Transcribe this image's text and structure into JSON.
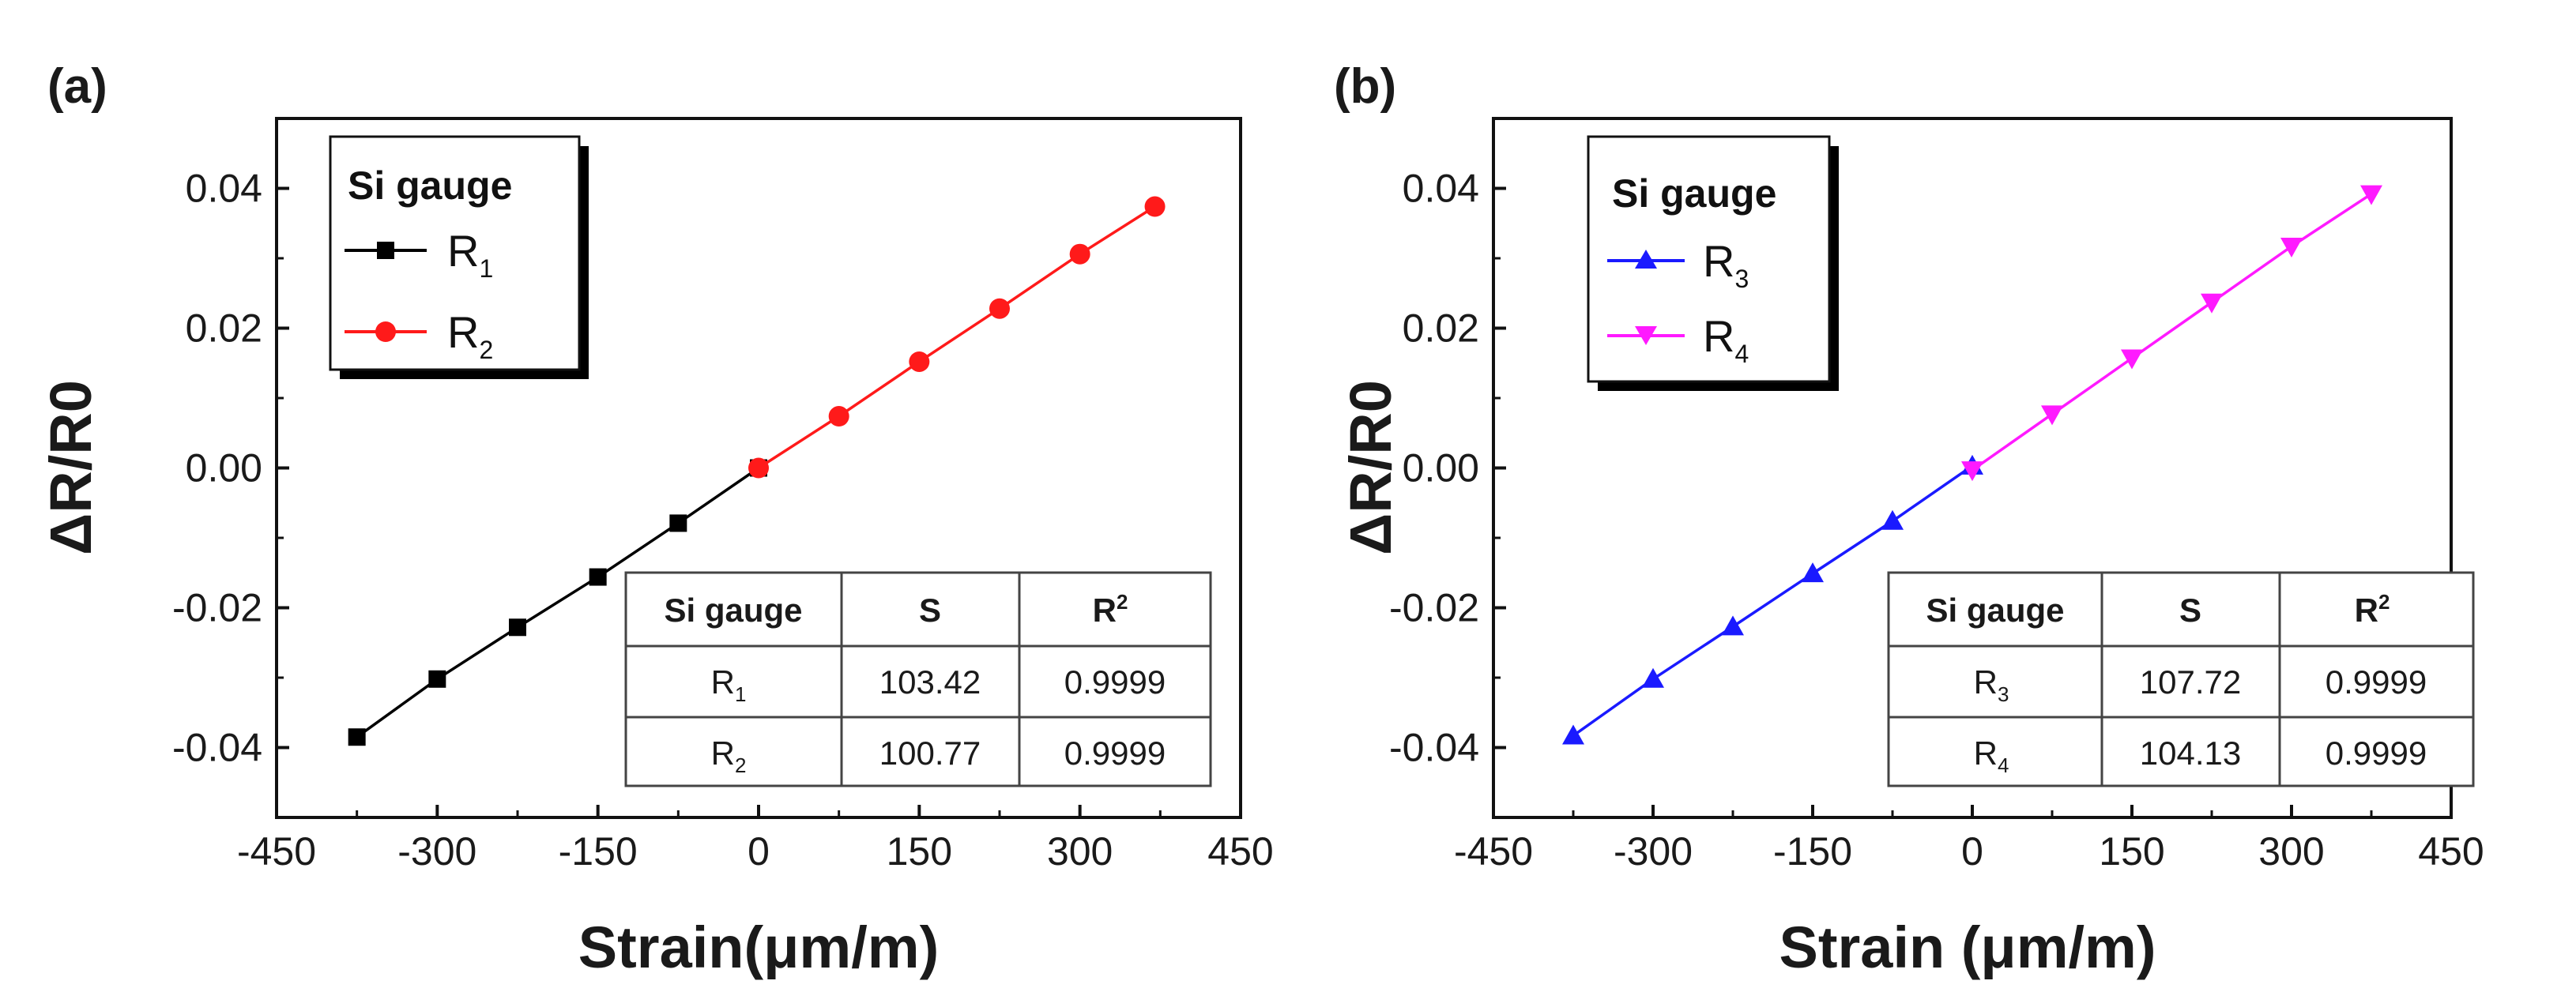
{
  "chart_data": [
    {
      "panel_label": "(a)",
      "type": "line",
      "xlabel": "Strain(μm/m)",
      "ylabel": "ΔR/R0",
      "xlim": [
        -450,
        450
      ],
      "ylim": [
        -0.05,
        0.05
      ],
      "x_ticks": [
        "-450",
        "-300",
        "-150",
        "0",
        "150",
        "300",
        "450"
      ],
      "y_ticks": [
        "-0.04",
        "-0.02",
        "0.00",
        "0.02",
        "0.04"
      ],
      "legend": {
        "title": "Si gauge",
        "position": "top-left",
        "entries": [
          {
            "base": "R",
            "sub": "1"
          },
          {
            "base": "R",
            "sub": "2"
          }
        ]
      },
      "series": [
        {
          "name": "R1",
          "color": "#000000",
          "marker": "square",
          "x": [
            -375,
            -300,
            -225,
            -150,
            -75,
            0
          ],
          "y": [
            -0.0385,
            -0.0302,
            -0.0228,
            -0.0156,
            -0.0079,
            0.0
          ]
        },
        {
          "name": "R2",
          "color": "#ff1a1a",
          "marker": "circle",
          "x": [
            0,
            75,
            150,
            225,
            300,
            370
          ],
          "y": [
            0.0,
            0.0074,
            0.0152,
            0.0228,
            0.0306,
            0.0374
          ]
        }
      ],
      "table": {
        "headers": [
          "Si gauge",
          "S",
          "R",
          "2"
        ],
        "rows": [
          {
            "gauge": "R",
            "sub": "1",
            "S": "103.42",
            "R2": "0.9999"
          },
          {
            "gauge": "R",
            "sub": "2",
            "S": "100.77",
            "R2": "0.9999"
          }
        ]
      }
    },
    {
      "panel_label": "(b)",
      "type": "line",
      "xlabel": "Strain (μm/m)",
      "ylabel": "ΔR/R0",
      "xlim": [
        -450,
        450
      ],
      "ylim": [
        -0.05,
        0.05
      ],
      "x_ticks": [
        "-450",
        "-300",
        "-150",
        "0",
        "150",
        "300",
        "450"
      ],
      "y_ticks": [
        "-0.04",
        "-0.02",
        "0.00",
        "0.02",
        "0.04"
      ],
      "legend": {
        "title": "Si gauge",
        "position": "top-left",
        "entries": [
          {
            "base": "R",
            "sub": "3"
          },
          {
            "base": "R",
            "sub": "4"
          }
        ]
      },
      "series": [
        {
          "name": "R3",
          "color": "#1a1aff",
          "marker": "triangle-up",
          "x": [
            -375,
            -300,
            -225,
            -150,
            -75,
            0
          ],
          "y": [
            -0.0383,
            -0.0302,
            -0.0227,
            -0.0151,
            -0.0076,
            0.0003
          ]
        },
        {
          "name": "R4",
          "color": "#ff1aff",
          "marker": "triangle-down",
          "x": [
            0,
            75,
            150,
            225,
            300,
            375
          ],
          "y": [
            -0.0003,
            0.0077,
            0.0157,
            0.0237,
            0.0317,
            0.0392
          ]
        }
      ],
      "table": {
        "headers": [
          "Si gauge",
          "S",
          "R",
          "2"
        ],
        "rows": [
          {
            "gauge": "R",
            "sub": "3",
            "S": "107.72",
            "R2": "0.9999"
          },
          {
            "gauge": "R",
            "sub": "4",
            "S": "104.13",
            "R2": "0.9999"
          }
        ]
      }
    }
  ]
}
